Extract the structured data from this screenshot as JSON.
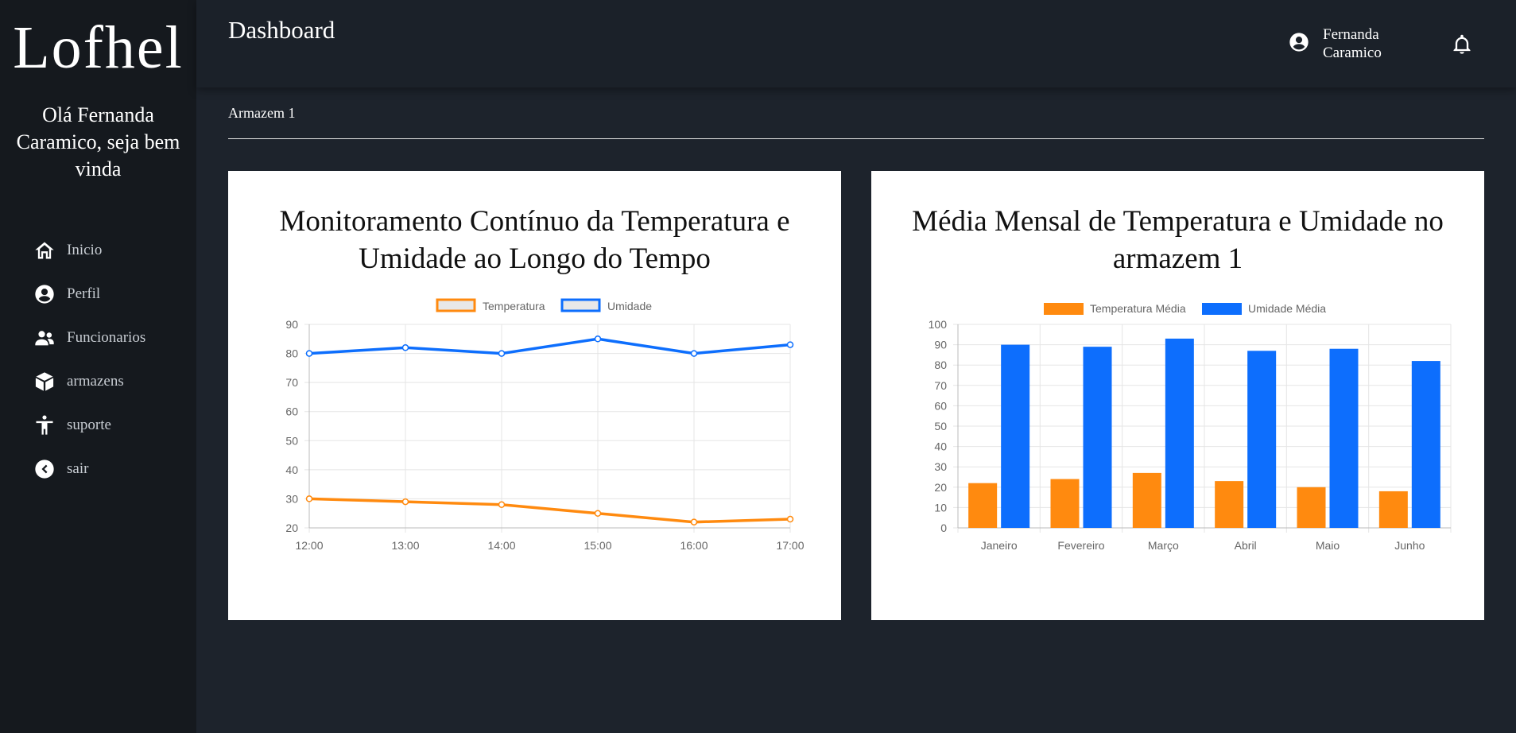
{
  "sidebar": {
    "logo": "Lofhel",
    "greeting": "Olá Fernanda Caramico, seja bem vinda",
    "items": [
      {
        "label": "Inicio",
        "icon": "home-icon"
      },
      {
        "label": "Perfil",
        "icon": "user-circle-icon"
      },
      {
        "label": "Funcionarios",
        "icon": "users-icon"
      },
      {
        "label": "armazens",
        "icon": "box-icon"
      },
      {
        "label": "suporte",
        "icon": "accessibility-icon"
      },
      {
        "label": "sair",
        "icon": "chevron-left-circle-icon"
      }
    ]
  },
  "header": {
    "title": "Dashboard",
    "user_name": "Fernanda Caramico"
  },
  "breadcrumb": "Armazem 1",
  "colors": {
    "temperature": "#ff8a0f",
    "humidity": "#0d6efd"
  },
  "chart_data": [
    {
      "type": "line",
      "title": "Monitoramento Contínuo da Temperatura e Umidade ao Longo do Tempo",
      "categories": [
        "12:00",
        "13:00",
        "14:00",
        "15:00",
        "16:00",
        "17:00"
      ],
      "series": [
        {
          "name": "Temperatura",
          "values": [
            30,
            29,
            28,
            25,
            22,
            23
          ]
        },
        {
          "name": "Umidade",
          "values": [
            80,
            82,
            80,
            85,
            80,
            83
          ]
        }
      ],
      "ylim": [
        20,
        90
      ],
      "yticks": [
        20,
        30,
        40,
        50,
        60,
        70,
        80,
        90
      ],
      "grid": true,
      "legend": "top"
    },
    {
      "type": "bar",
      "title": "Média Mensal de Temperatura e Umidade no armazem 1",
      "categories": [
        "Janeiro",
        "Fevereiro",
        "Março",
        "Abril",
        "Maio",
        "Junho"
      ],
      "series": [
        {
          "name": "Temperatura Média",
          "values": [
            22,
            24,
            27,
            23,
            20,
            18
          ]
        },
        {
          "name": "Umidade Média",
          "values": [
            90,
            89,
            93,
            87,
            88,
            82
          ]
        }
      ],
      "ylim": [
        0,
        100
      ],
      "yticks": [
        0,
        10,
        20,
        30,
        40,
        50,
        60,
        70,
        80,
        90,
        100
      ],
      "grid": true,
      "legend": "top"
    }
  ]
}
